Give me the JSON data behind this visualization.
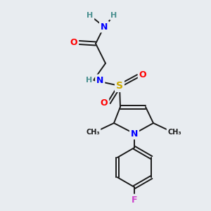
{
  "background_color": "#e8ecf0",
  "bond_color": "#1a1a1a",
  "atom_colors": {
    "N": "#0000ff",
    "O": "#ff0000",
    "S": "#ccaa00",
    "F": "#cc44cc",
    "H": "#4a9090",
    "C": "#1a1a1a"
  },
  "figsize": [
    3.0,
    3.0
  ],
  "dpi": 100,
  "lw": 1.4
}
